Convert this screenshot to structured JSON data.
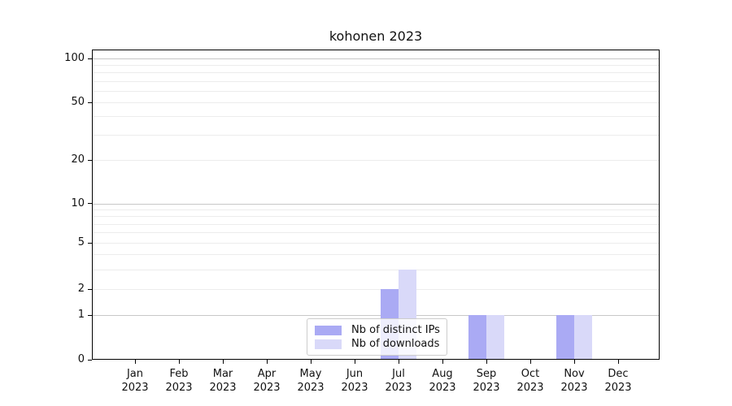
{
  "chart_data": {
    "type": "bar",
    "title": "kohonen 2023",
    "categories": [
      "Jan",
      "Feb",
      "Mar",
      "Apr",
      "May",
      "Jun",
      "Jul",
      "Aug",
      "Sep",
      "Oct",
      "Nov",
      "Dec"
    ],
    "x_year_label": "2023",
    "series": [
      {
        "name": "Nb of distinct IPs",
        "color": "#aaaaf4",
        "values": [
          0,
          0,
          0,
          0,
          0,
          0,
          2,
          0,
          1,
          0,
          1,
          0
        ]
      },
      {
        "name": "Nb of downloads",
        "color": "#d9d9f9",
        "values": [
          0,
          0,
          0,
          0,
          0,
          0,
          3,
          0,
          1,
          0,
          1,
          0
        ]
      }
    ],
    "y_axis": {
      "scale": "symlog",
      "tick_labels": [
        0,
        1,
        2,
        5,
        10,
        20,
        50,
        100
      ],
      "major_gridlines": [
        1,
        10,
        100
      ],
      "minor_gridlines": [
        2,
        3,
        4,
        5,
        6,
        7,
        8,
        9,
        20,
        30,
        40,
        50,
        60,
        70,
        80,
        90
      ],
      "ylim_max": 100
    },
    "legend": {
      "position": "lower center",
      "entries": [
        "Nb of distinct IPs",
        "Nb of downloads"
      ]
    },
    "colors": {
      "bar_distinct_ips": "#aaaaf4",
      "bar_downloads": "#d9d9f9",
      "major_grid": "#c7c7c7",
      "minor_grid": "#ececec",
      "axis": "#000000",
      "background": "#ffffff"
    }
  }
}
